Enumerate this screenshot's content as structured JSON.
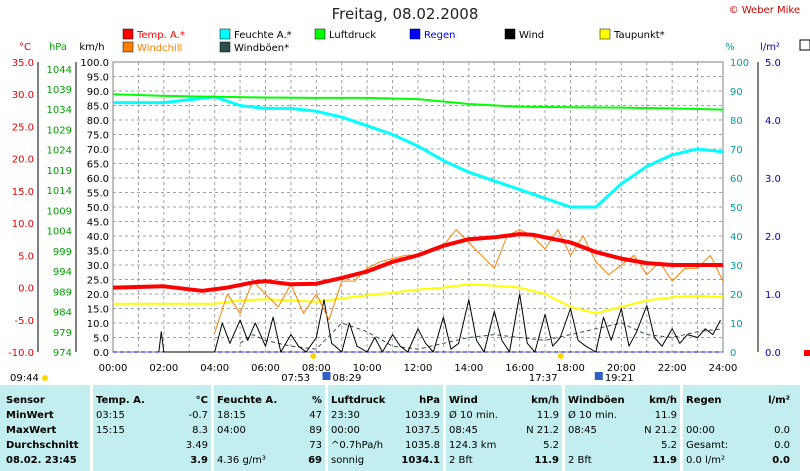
{
  "header": {
    "title": "Freitag, 08.02.2008",
    "credit": "© Weber Mike"
  },
  "axis_labels": {
    "temp_unit": "°C",
    "hpa_unit": "hPa",
    "wind_unit": "km/h",
    "hum_unit": "%",
    "rain_unit": "l/m²"
  },
  "legend": [
    {
      "label": "Temp. A.*",
      "color": "#ff0000"
    },
    {
      "label": "Feuchte A.*",
      "color": "#00ffff"
    },
    {
      "label": "Luftdruck",
      "color": "#00ff00"
    },
    {
      "label": "Regen",
      "color": "#0000ff"
    },
    {
      "label": "Wind",
      "color": "#000000"
    },
    {
      "label": "Taupunkt*",
      "color": "#ffff00"
    },
    {
      "label": "Windchill",
      "color": "#ff8000"
    },
    {
      "label": "Windböen*",
      "color": "#2f4f4f"
    }
  ],
  "sun": {
    "left_time": "09:44",
    "rise": "07:53",
    "rise2": "08:29",
    "set": "17:37",
    "set2": "19:21"
  },
  "chart_data": {
    "type": "line",
    "x_label_ticks": [
      "00:00",
      "02:00",
      "04:00",
      "06:00",
      "08:00",
      "10:00",
      "12:00",
      "14:00",
      "16:00",
      "18:00",
      "20:00",
      "22:00",
      "24:00"
    ],
    "axes": {
      "temp_c": {
        "ticks": [
          "35.0",
          "30.0",
          "25.0",
          "20.0",
          "15.0",
          "10.0",
          "5.0",
          "0.0",
          "-5.0",
          "-10.0"
        ],
        "range": [
          -10,
          35
        ]
      },
      "pressure_hpa": {
        "ticks": [
          "1044",
          "1039",
          "1034",
          "1029",
          "1024",
          "1019",
          "1014",
          "1009",
          "1004",
          "999",
          "994",
          "989",
          "984",
          "979",
          "974"
        ],
        "range": [
          974,
          1045.67
        ]
      },
      "wind_kmh": {
        "ticks": [
          "100.0",
          "95.0",
          "90.0",
          "85.0",
          "80.0",
          "75.0",
          "70.0",
          "65.0",
          "60.0",
          "55.0",
          "50.0",
          "45.0",
          "40.0",
          "35.0",
          "30.0",
          "25.0",
          "20.0",
          "15.0",
          "10.0",
          "5.0",
          "0.0"
        ],
        "range": [
          0,
          100
        ]
      },
      "humidity_pct": {
        "ticks": [
          "100",
          "90",
          "80",
          "70",
          "60",
          "50",
          "40",
          "30",
          "20",
          "10",
          "0"
        ],
        "range": [
          0,
          100
        ]
      },
      "rain_lm2": {
        "ticks": [
          "5.0",
          "4.0",
          "3.0",
          "2.0",
          "1.0",
          "0.0"
        ],
        "range": [
          0,
          5
        ]
      }
    },
    "series": [
      {
        "name": "Temp. A.*",
        "color": "#ff0000",
        "axis": "temp_c",
        "width": 4,
        "x": [
          0,
          2,
          3.5,
          4.5,
          5.5,
          6,
          7,
          8,
          9,
          10,
          11,
          12,
          13,
          14,
          15,
          16,
          16.5,
          17,
          18,
          19,
          20,
          21,
          22,
          23,
          24
        ],
        "y": [
          0,
          0.2,
          -0.5,
          0,
          0.8,
          1,
          0.5,
          0.6,
          1.5,
          2.5,
          4,
          5,
          6.5,
          7.5,
          7.8,
          8.3,
          8.2,
          7.8,
          7,
          5.5,
          4.5,
          3.8,
          3.5,
          3.5,
          3.5
        ]
      },
      {
        "name": "Feuchte A.*",
        "color": "#00ffff",
        "axis": "humidity_pct",
        "width": 3,
        "x": [
          0,
          2,
          3,
          4,
          5,
          6,
          7,
          8,
          9,
          10,
          11,
          12,
          13,
          14,
          15,
          16,
          17,
          18,
          19,
          20,
          21,
          22,
          23,
          24
        ],
        "y": [
          86,
          86,
          87,
          88,
          85,
          84,
          84,
          83,
          81,
          78,
          75,
          71,
          66,
          62,
          59,
          56,
          53,
          50,
          50,
          58,
          64,
          68,
          70,
          69
        ]
      },
      {
        "name": "Luftdruck",
        "color": "#00ff00",
        "axis": "pressure_hpa",
        "width": 2,
        "x": [
          0,
          2,
          4,
          6,
          8,
          10,
          12,
          14,
          16,
          18,
          20,
          22,
          24
        ],
        "y": [
          1037.7,
          1037.3,
          1037.1,
          1036.9,
          1036.8,
          1036.8,
          1036.5,
          1035.3,
          1034.6,
          1034.5,
          1034.4,
          1034.2,
          1033.9
        ]
      },
      {
        "name": "Taupunkt*",
        "color": "#ffff00",
        "axis": "temp_c",
        "width": 2,
        "x": [
          0,
          2,
          4,
          5,
          6,
          7,
          8,
          9,
          10,
          11,
          12,
          13,
          14,
          15,
          16,
          17,
          18,
          19,
          20,
          21,
          22,
          23,
          24
        ],
        "y": [
          -2.5,
          -2.5,
          -2.5,
          -2,
          -1.8,
          -2,
          -2.2,
          -1.7,
          -1.2,
          -0.8,
          -0.3,
          0,
          0.5,
          0.3,
          0,
          -1,
          -3,
          -4,
          -3,
          -2,
          -1.5,
          -1.3,
          -1.5
        ]
      },
      {
        "name": "Windchill",
        "color": "#ff8000",
        "axis": "temp_c",
        "width": 1,
        "x": [
          4,
          4.5,
          5,
          5.5,
          6,
          6.5,
          7,
          7.5,
          8,
          8.5,
          9,
          9.5,
          10,
          10.5,
          11,
          11.5,
          12,
          12.5,
          13,
          13.5,
          14,
          14.5,
          15,
          15.5,
          16,
          16.5,
          17,
          17.5,
          18,
          18.5,
          19,
          19.5,
          20,
          20.5,
          21,
          21.5,
          22,
          22.5,
          23,
          23.5,
          24
        ],
        "y": [
          -7,
          -1,
          -4,
          1,
          -1,
          -3,
          0.5,
          -4,
          -1,
          -5,
          1,
          1,
          3,
          4,
          4.5,
          5,
          5,
          6,
          6.5,
          9,
          7,
          5,
          3,
          8,
          9,
          8,
          6,
          9,
          5,
          8,
          4,
          2,
          3.5,
          5,
          2,
          4,
          1,
          3,
          3,
          5,
          1
        ]
      },
      {
        "name": "Wind",
        "color": "#000000",
        "axis": "wind_kmh",
        "width": 1,
        "x": [
          1.8,
          1.9,
          2,
          4,
          4.3,
          4.6,
          5,
          5.3,
          5.6,
          6,
          6.3,
          6.6,
          7,
          7.3,
          7.6,
          8,
          8.3,
          8.6,
          9,
          9.3,
          9.6,
          10,
          10.3,
          10.6,
          11,
          11.3,
          11.6,
          12,
          12.3,
          12.6,
          13,
          13.3,
          13.6,
          14,
          14.3,
          14.6,
          15,
          15.3,
          15.6,
          16,
          16.3,
          16.6,
          17,
          17.3,
          17.6,
          18,
          18.3,
          18.6,
          19,
          19.3,
          19.6,
          20,
          20.3,
          20.6,
          21,
          21.3,
          21.6,
          22,
          22.3,
          22.6,
          23,
          23.3,
          23.6,
          23.9
        ],
        "y": [
          0,
          7,
          0,
          0,
          10,
          3,
          11,
          4,
          10,
          2,
          12,
          0,
          6,
          2,
          0,
          5,
          18,
          3,
          0,
          10,
          2,
          0,
          5,
          0,
          6,
          2,
          0,
          8,
          3,
          0,
          12,
          1,
          3,
          18,
          4,
          0,
          14,
          4,
          0,
          20,
          3,
          0,
          13,
          2,
          5,
          15,
          4,
          2,
          0,
          12,
          4,
          15,
          2,
          7,
          16,
          5,
          2,
          8,
          3,
          6,
          5,
          8,
          6,
          11
        ]
      },
      {
        "name": "Windböen*",
        "color": "#2f4f4f",
        "axis": "wind_kmh",
        "width": 1,
        "dashed": true,
        "x": [
          5,
          5.5,
          6,
          7,
          8,
          9,
          10,
          11,
          12,
          13,
          14,
          15,
          16,
          17,
          18,
          19,
          20,
          21,
          22,
          23,
          24
        ],
        "y": [
          3,
          6,
          4,
          2,
          1,
          10,
          7,
          2,
          1,
          3,
          5,
          6,
          5,
          4,
          6,
          8,
          10,
          6,
          5,
          7,
          8
        ]
      },
      {
        "name": "Regen",
        "color": "#0000ff",
        "axis": "rain_lm2",
        "width": 1,
        "dashed": true,
        "x": [
          0,
          24
        ],
        "y": [
          0,
          0
        ]
      }
    ]
  },
  "stats": {
    "sensor": {
      "head": "Sensor",
      "rows": [
        "MinWert",
        "MaxWert",
        "Durchschnitt",
        "08.02. 23:45"
      ]
    },
    "temp": {
      "head": "Temp. A.",
      "unit": "°C",
      "t": [
        "03:15",
        "15:15",
        "",
        ""
      ],
      "v": [
        "-0.7",
        "8.3",
        "3.49",
        "3.9"
      ]
    },
    "hum": {
      "head": "Feuchte A.",
      "unit": "%",
      "t": [
        "18:15",
        "04:00",
        "",
        "4.36 g/m³"
      ],
      "v": [
        "47",
        "89",
        "73",
        "69"
      ]
    },
    "press": {
      "head": "Luftdruck",
      "unit": "hPa",
      "t": [
        "23:30",
        "00:00",
        "^0.7hPa/h",
        "sonnig"
      ],
      "v": [
        "1033.9",
        "1037.5",
        "1035.8",
        "1034.1"
      ]
    },
    "wind": {
      "head": "Wind",
      "unit": "km/h",
      "t": [
        "Ø 10 min.",
        "08:45",
        "124.3 km",
        "2 Bft"
      ],
      "v": [
        "11.9",
        "N 21.2",
        "5.2",
        "11.9"
      ]
    },
    "gust": {
      "head": "Windböen",
      "unit": "km/h",
      "t": [
        "Ø 10 min.",
        "08:45",
        "",
        "2 Bft"
      ],
      "v": [
        "11.9",
        "N 21.2",
        "5.2",
        "11.9"
      ]
    },
    "rain": {
      "head": "Regen",
      "unit": "l/m²",
      "t": [
        "",
        "00:00",
        "Gesamt:",
        "0.0 l/m²"
      ],
      "v": [
        "",
        "0.0",
        "0.0",
        "0.0"
      ]
    }
  }
}
